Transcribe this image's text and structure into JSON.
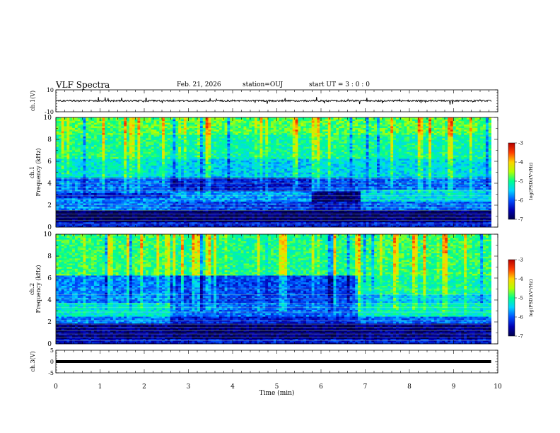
{
  "header": {
    "title": "VLF Spectra",
    "date": "Feb. 21, 2026",
    "station": "station=OUJ",
    "start": "start UT = 3 : 0 : 0"
  },
  "chart_data": [
    {
      "type": "line",
      "panel": "ch1-waveform",
      "ylabel": "ch.1(V)",
      "ylim": [
        -10,
        10
      ],
      "yticks": [
        10,
        -10
      ],
      "xlim": [
        0,
        10
      ],
      "baseline_volts": 0,
      "note": "dense waveform trace with small spikes"
    },
    {
      "type": "heatmap",
      "panel": "ch1-spectrogram",
      "ylabel": "ch.1 Frequency (kHz)",
      "ylim": [
        0,
        10
      ],
      "yticks": [
        "0",
        "2",
        "4",
        "6",
        "8",
        "10"
      ],
      "xlim": [
        0,
        9.85
      ],
      "colorbar": {
        "label": "log(PSD)(V²/Hz)",
        "range": [
          -7,
          -3
        ],
        "ticks": [
          "-3",
          "-4",
          "-5",
          "-6",
          "-7"
        ]
      },
      "regions": [
        {
          "t": [
            0,
            2.6
          ],
          "levels": [
            [
              0,
              0.5,
              -6.3
            ],
            [
              0.5,
              1.5,
              -6.9
            ],
            [
              1.5,
              2.6,
              -5.8
            ],
            [
              2.6,
              3.2,
              -6.3
            ],
            [
              3.2,
              4.6,
              -5.9
            ],
            [
              4.6,
              6.3,
              -5.3
            ],
            [
              6.3,
              8.5,
              -5.0
            ],
            [
              8.5,
              10,
              -4.8
            ]
          ]
        },
        {
          "t": [
            2.6,
            5.8
          ],
          "levels": [
            [
              0,
              0.5,
              -6.3
            ],
            [
              0.5,
              1.5,
              -6.8
            ],
            [
              1.5,
              2.3,
              -6.1
            ],
            [
              2.3,
              3.3,
              -5.7
            ],
            [
              3.3,
              4.6,
              -6.3
            ],
            [
              4.6,
              6.3,
              -5.5
            ],
            [
              6.3,
              8.5,
              -5.1
            ],
            [
              8.5,
              10,
              -4.8
            ]
          ]
        },
        {
          "t": [
            5.8,
            6.9
          ],
          "levels": [
            [
              0,
              0.5,
              -6.4
            ],
            [
              0.5,
              1.5,
              -6.9
            ],
            [
              1.5,
              2.4,
              -6.4
            ],
            [
              2.4,
              3.3,
              -6.8
            ],
            [
              3.3,
              4.6,
              -6.0
            ],
            [
              4.6,
              6.3,
              -5.4
            ],
            [
              6.3,
              8.5,
              -5.0
            ],
            [
              8.5,
              10,
              -4.8
            ]
          ]
        },
        {
          "t": [
            6.9,
            9.85
          ],
          "levels": [
            [
              0,
              0.5,
              -6.3
            ],
            [
              0.5,
              1.5,
              -6.8
            ],
            [
              1.5,
              2.3,
              -5.9
            ],
            [
              2.3,
              3.5,
              -5.4
            ],
            [
              3.5,
              4.6,
              -5.9
            ],
            [
              4.6,
              6.3,
              -5.4
            ],
            [
              6.3,
              8.5,
              -5.1
            ],
            [
              8.5,
              10,
              -4.8
            ]
          ]
        }
      ],
      "harmonic_lines_khz": [
        0.3,
        0.6,
        0.9,
        1.2,
        1.5,
        1.8,
        2.1,
        2.5,
        2.85,
        3.3,
        3.6,
        4.0,
        4.4
      ]
    },
    {
      "type": "heatmap",
      "panel": "ch2-spectrogram",
      "ylabel": "ch.2 Frequency (kHz)",
      "ylim": [
        0,
        10
      ],
      "yticks": [
        "0",
        "2",
        "4",
        "6",
        "8",
        "10"
      ],
      "xlim": [
        0,
        9.85
      ],
      "colorbar": {
        "label": "log(PSD)(V²/Hz)",
        "range": [
          -7,
          -3
        ],
        "ticks": [
          "-3",
          "-4",
          "-5",
          "-6",
          "-7"
        ]
      },
      "regions": [
        {
          "t": [
            0,
            2.6
          ],
          "levels": [
            [
              0,
              0.5,
              -6.4
            ],
            [
              0.5,
              1.9,
              -6.7
            ],
            [
              1.9,
              2.5,
              -5.8
            ],
            [
              2.5,
              3.8,
              -5.3
            ],
            [
              3.8,
              6.3,
              -5.8
            ],
            [
              6.3,
              10,
              -4.9
            ]
          ]
        },
        {
          "t": [
            2.6,
            6.85
          ],
          "levels": [
            [
              0,
              0.5,
              -6.3
            ],
            [
              0.5,
              1.9,
              -6.8
            ],
            [
              1.9,
              2.5,
              -6.3
            ],
            [
              2.5,
              3.8,
              -5.9
            ],
            [
              3.8,
              6.3,
              -6.1
            ],
            [
              6.3,
              10,
              -5.0
            ]
          ]
        },
        {
          "t": [
            6.85,
            9.85
          ],
          "levels": [
            [
              0,
              0.5,
              -6.3
            ],
            [
              0.5,
              1.9,
              -6.7
            ],
            [
              1.9,
              2.5,
              -5.9
            ],
            [
              2.5,
              3.8,
              -5.2
            ],
            [
              3.8,
              4.6,
              -5.5
            ],
            [
              4.6,
              6.3,
              -5.1
            ],
            [
              6.3,
              10,
              -4.9
            ]
          ]
        }
      ],
      "harmonic_lines_khz": [
        0.3,
        0.6,
        0.9,
        1.2,
        1.5,
        1.8,
        2.1,
        2.9,
        3.3,
        3.7,
        4.1,
        4.5,
        5.0
      ]
    },
    {
      "type": "line",
      "panel": "ch3-waveform",
      "ylabel": "ch.3(V)",
      "ylim": [
        -5,
        5
      ],
      "yticks": [
        "5",
        "0",
        "-5"
      ],
      "xlim": [
        0,
        10
      ],
      "baseline_volts": 0,
      "note": "thick flat trace"
    }
  ],
  "xaxis": {
    "label": "Time (min)",
    "ticks": [
      "0",
      "1",
      "2",
      "3",
      "4",
      "5",
      "6",
      "7",
      "8",
      "9",
      "10"
    ],
    "range": [
      0,
      10
    ]
  },
  "colors": {
    "colormap": [
      "#00004a",
      "#0000b4",
      "#0050ff",
      "#00d2ff",
      "#00ff8c",
      "#b4ff00",
      "#ffd200",
      "#ff3c00",
      "#b40000"
    ]
  }
}
